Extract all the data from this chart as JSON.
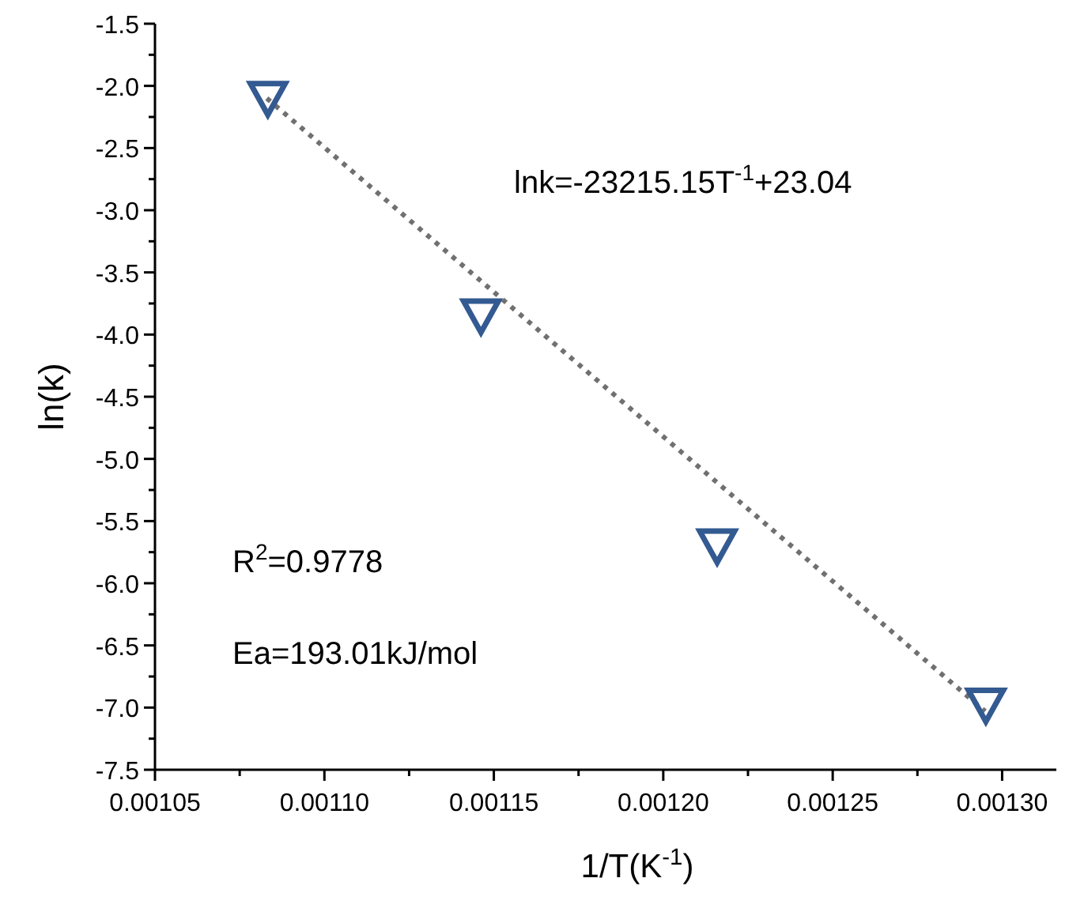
{
  "chart_data": {
    "type": "scatter",
    "xlabel": "1/T(K$^{-1}$)",
    "ylabel": "ln(k)",
    "xlim": [
      0.00105,
      0.001316
    ],
    "ylim": [
      -7.5,
      -1.5
    ],
    "xticks": [
      {
        "value": 0.00105,
        "label": "0.00105"
      },
      {
        "value": 0.001075,
        "label": null
      },
      {
        "value": 0.0011,
        "label": "0.00110"
      },
      {
        "value": 0.001125,
        "label": null
      },
      {
        "value": 0.00115,
        "label": "0.00115"
      },
      {
        "value": 0.001175,
        "label": null
      },
      {
        "value": 0.0012,
        "label": "0.00120"
      },
      {
        "value": 0.001225,
        "label": null
      },
      {
        "value": 0.00125,
        "label": "0.00125"
      },
      {
        "value": 0.001275,
        "label": null
      },
      {
        "value": 0.0013,
        "label": "0.00130"
      }
    ],
    "yticks": [
      -1.5,
      {
        "value": -1.75,
        "label": null
      },
      {
        "value": -2,
        "label": "-2.0"
      },
      {
        "value": -2.25,
        "label": null
      },
      -2.5,
      {
        "value": -2.75,
        "label": null
      },
      {
        "value": -3,
        "label": "-3.0"
      },
      {
        "value": -3.25,
        "label": null
      },
      -3.5,
      {
        "value": -3.75,
        "label": null
      },
      {
        "value": -4,
        "label": "-4.0"
      },
      {
        "value": -4.25,
        "label": null
      },
      -4.5,
      {
        "value": -4.75,
        "label": null
      },
      {
        "value": -5,
        "label": "-5.0"
      },
      {
        "value": -5.25,
        "label": null
      },
      -5.5,
      {
        "value": -5.75,
        "label": null
      },
      {
        "value": -6,
        "label": "-6.0"
      },
      {
        "value": -6.25,
        "label": null
      },
      -6.5,
      {
        "value": -6.75,
        "label": null
      },
      {
        "value": -7,
        "label": "-7.0"
      },
      {
        "value": -7.25,
        "label": null
      },
      -7.5
    ],
    "series": [
      {
        "type": "line",
        "color": "#707070",
        "line_style": "dotted",
        "x": [
          0.001083,
          0.001295
        ],
        "values": [
          -2.1,
          -7.03
        ]
      },
      {
        "color": "#335a91",
        "marker": "triangle",
        "x": [
          0.0010833,
          0.0011462,
          0.0012159,
          0.0012952
        ],
        "values": [
          -2.1,
          -3.85,
          -5.7,
          -6.98
        ]
      }
    ],
    "annotations": [
      "lnk=-23215.15T$^{-1}$+23.04",
      "R$^{2}$=0.9778",
      "Ea=193.01kJ/mol"
    ]
  }
}
